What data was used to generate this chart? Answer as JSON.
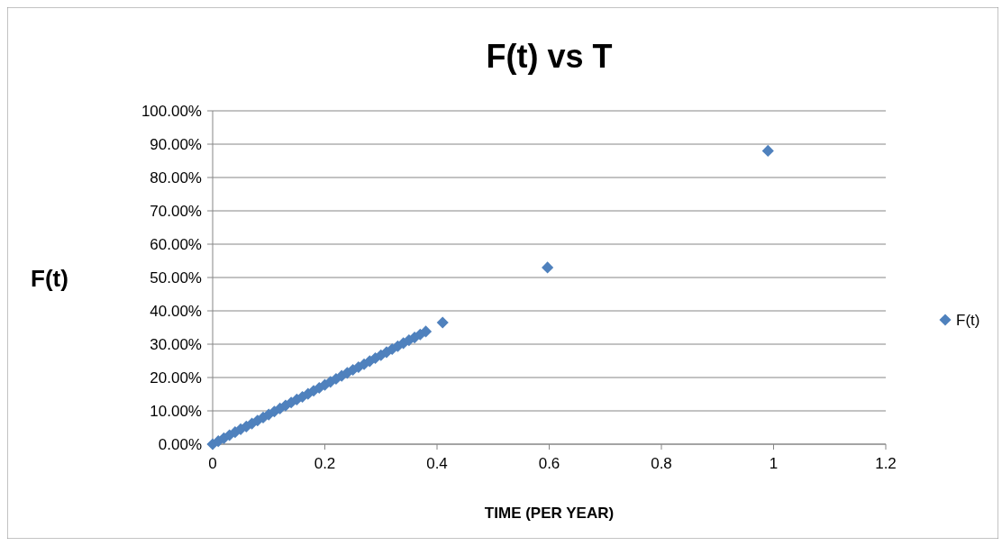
{
  "chart_data": {
    "type": "scatter",
    "title": "F(t) vs T",
    "xlabel": "TIME (PER YEAR)",
    "ylabel": "F(t)",
    "series": [
      {
        "name": "F(t)",
        "color": "#4f81bd",
        "x": [
          0,
          0.01,
          0.02,
          0.03,
          0.04,
          0.05,
          0.06,
          0.07,
          0.08,
          0.09,
          0.1,
          0.11,
          0.12,
          0.13,
          0.14,
          0.15,
          0.16,
          0.17,
          0.18,
          0.19,
          0.2,
          0.21,
          0.22,
          0.23,
          0.24,
          0.25,
          0.26,
          0.27,
          0.28,
          0.29,
          0.3,
          0.31,
          0.32,
          0.33,
          0.34,
          0.35,
          0.36,
          0.37,
          0.38,
          0.41,
          0.597,
          0.99
        ],
        "values": [
          0,
          0.9,
          1.8,
          2.7,
          3.6,
          4.5,
          5.3,
          6.2,
          7.1,
          8,
          8.9,
          9.8,
          10.7,
          11.6,
          12.5,
          13.4,
          14.2,
          15.1,
          16,
          16.9,
          17.8,
          18.7,
          19.6,
          20.5,
          21.4,
          22.3,
          23.1,
          24,
          24.9,
          25.8,
          26.7,
          27.6,
          28.5,
          29.4,
          30.3,
          31.2,
          32,
          32.9,
          33.8,
          36.5,
          53,
          88
        ]
      }
    ],
    "xlim": [
      0,
      1.2
    ],
    "xticks": [
      0,
      0.2,
      0.4,
      0.6,
      0.8,
      1,
      1.2
    ],
    "ylim": [
      0,
      100
    ],
    "yticks": [
      {
        "value": 0,
        "label": "0.00%"
      },
      {
        "value": 10,
        "label": "10.00%"
      },
      {
        "value": 20,
        "label": "20.00%"
      },
      {
        "value": 30,
        "label": "30.00%"
      },
      {
        "value": 40,
        "label": "40.00%"
      },
      {
        "value": 50,
        "label": "50.00%"
      },
      {
        "value": 60,
        "label": "60.00%"
      },
      {
        "value": 70,
        "label": "70.00%"
      },
      {
        "value": 80,
        "label": "80.00%"
      },
      {
        "value": 90,
        "label": "90.00%"
      },
      {
        "value": 100,
        "label": "100.00%"
      }
    ],
    "grid": "y",
    "legend": "right",
    "marker": "diamond"
  }
}
